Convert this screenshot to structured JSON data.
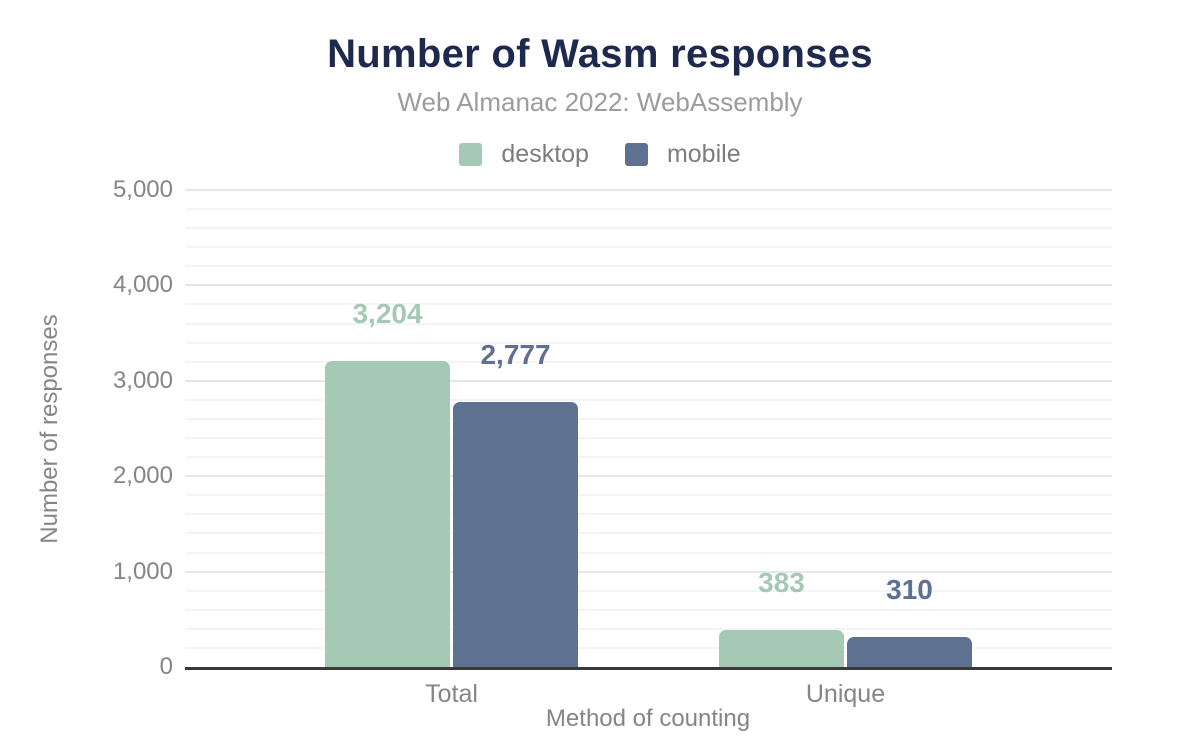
{
  "chart_data": {
    "type": "bar",
    "title": "Number of Wasm responses",
    "subtitle": "Web Almanac 2022: WebAssembly",
    "xlabel": "Method of counting",
    "ylabel": "Number of responses",
    "categories": [
      "Total",
      "Unique"
    ],
    "series": [
      {
        "name": "desktop",
        "color": "#a6c9b6",
        "values": [
          3204,
          383
        ]
      },
      {
        "name": "mobile",
        "color": "#5e7190",
        "values": [
          2777,
          310
        ]
      }
    ],
    "ylim": [
      0,
      5000
    ],
    "y_major_tick_interval": 1000,
    "y_minor_gridline_interval": 200,
    "y_tick_labels": [
      "0",
      "1,000",
      "2,000",
      "3,000",
      "4,000",
      "5,000"
    ],
    "value_labels": [
      "3,204",
      "2,777",
      "383",
      "310"
    ],
    "grid": true,
    "legend_position": "top",
    "value_labels_shown": true
  },
  "colors": {
    "title": "#1e2a4d",
    "subtitle": "#9c9c9c",
    "legend_text": "#7d7d7d",
    "axis_text": "#858585",
    "major_gridline": "#e7e7e7",
    "minor_gridline": "#f4f4f4",
    "baseline": "#3a3a3a",
    "background": "#ffffff"
  }
}
